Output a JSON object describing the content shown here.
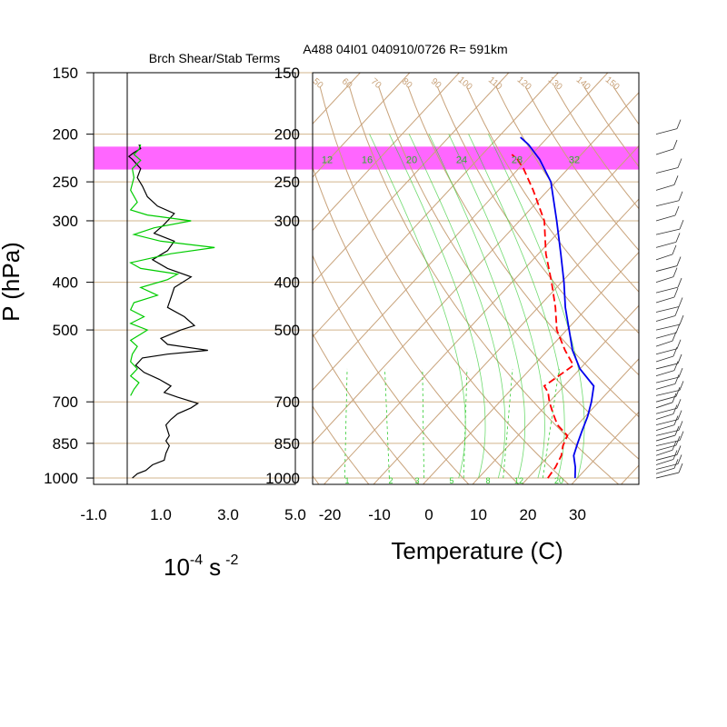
{
  "chart_data": [
    {
      "type": "line",
      "title": "Brch Shear/Stab Terms",
      "ylabel": "P (hPa)",
      "y_ticks": [
        150,
        200,
        250,
        300,
        400,
        500,
        700,
        850,
        1000
      ],
      "x_ticks": [
        "-1.0",
        "1.0",
        "3.0",
        "5.0"
      ],
      "unit_base": "10",
      "unit_exp": "-4",
      "unit_s": "s",
      "unit_s_exp": "-2",
      "ylim": [
        1000,
        150
      ],
      "xlim": [
        -1.0,
        5.0
      ],
      "zero_line": 0,
      "series": [
        {
          "color": "#000000",
          "points": [
            [
              0.15,
              1000
            ],
            [
              0.3,
              980
            ],
            [
              0.55,
              965
            ],
            [
              0.75,
              940
            ],
            [
              1.1,
              920
            ],
            [
              1.15,
              890
            ],
            [
              1.25,
              860
            ],
            [
              1.15,
              840
            ],
            [
              1.25,
              820
            ],
            [
              1.2,
              800
            ],
            [
              1.15,
              780
            ],
            [
              1.3,
              760
            ],
            [
              1.5,
              740
            ],
            [
              1.9,
              720
            ],
            [
              2.1,
              705
            ],
            [
              1.5,
              685
            ],
            [
              1.1,
              670
            ],
            [
              1.3,
              650
            ],
            [
              0.95,
              630
            ],
            [
              0.5,
              610
            ],
            [
              0.25,
              590
            ],
            [
              0.45,
              570
            ],
            [
              1.2,
              560
            ],
            [
              2.4,
              550
            ],
            [
              1.2,
              535
            ],
            [
              1.0,
              520
            ],
            [
              1.6,
              500
            ],
            [
              2.0,
              490
            ],
            [
              1.7,
              470
            ],
            [
              1.2,
              450
            ],
            [
              1.3,
              430
            ],
            [
              1.4,
              410
            ],
            [
              1.9,
              390
            ],
            [
              1.2,
              375
            ],
            [
              0.75,
              360
            ],
            [
              1.2,
              345
            ],
            [
              1.4,
              330
            ],
            [
              0.8,
              318
            ],
            [
              1.1,
              305
            ],
            [
              1.4,
              290
            ],
            [
              0.9,
              280
            ],
            [
              0.6,
              268
            ],
            [
              0.45,
              255
            ],
            [
              0.3,
              245
            ],
            [
              0.4,
              235
            ],
            [
              0.15,
              225
            ],
            [
              0.05,
              222
            ],
            [
              0.2,
              218
            ],
            [
              0.4,
              214
            ],
            [
              0.35,
              210
            ]
          ]
        },
        {
          "color": "#00cc00",
          "points": [
            [
              0.1,
              680
            ],
            [
              0.2,
              660
            ],
            [
              0.35,
              640
            ],
            [
              0.1,
              620
            ],
            [
              0.3,
              600
            ],
            [
              0.1,
              580
            ],
            [
              0.15,
              560
            ],
            [
              0.3,
              540
            ],
            [
              0.1,
              525
            ],
            [
              0.4,
              510
            ],
            [
              0.6,
              500
            ],
            [
              0.1,
              485
            ],
            [
              0.5,
              470
            ],
            [
              0.1,
              455
            ],
            [
              0.2,
              440
            ],
            [
              0.9,
              425
            ],
            [
              0.4,
              410
            ],
            [
              1.2,
              395
            ],
            [
              1.5,
              385
            ],
            [
              0.4,
              375
            ],
            [
              0.1,
              365
            ],
            [
              1.3,
              350
            ],
            [
              2.6,
              340
            ],
            [
              1.0,
              330
            ],
            [
              0.2,
              320
            ],
            [
              0.8,
              310
            ],
            [
              1.9,
              300
            ],
            [
              0.6,
              292
            ],
            [
              0.1,
              285
            ],
            [
              0.3,
              275
            ],
            [
              0.1,
              260
            ],
            [
              0.2,
              245
            ],
            [
              0.15,
              235
            ],
            [
              0.4,
              226
            ],
            [
              0.2,
              220
            ],
            [
              0.35,
              215
            ],
            [
              0.4,
              210
            ]
          ]
        }
      ]
    },
    {
      "type": "skew-t",
      "title": "A488 04I01 040910/0726 R= 591km",
      "xlabel": "Temperature (C)",
      "y_ticks": [
        150,
        200,
        250,
        300,
        400,
        500,
        700,
        850,
        1000
      ],
      "x_ticks": [
        "-20",
        "-10",
        "0",
        "10",
        "20",
        "30"
      ],
      "ylim": [
        1000,
        150
      ],
      "xlim_at_1000hPa": [
        -23.5,
        42
      ],
      "highlight_band_hPa": [
        212,
        236
      ],
      "highlight_color": "#ff66ff",
      "mixing_ratio_labels": [
        "1",
        "2",
        "3",
        "5",
        "8",
        "12",
        "20"
      ],
      "moist_adiabat_labels": [
        "12",
        "16",
        "20",
        "24",
        "28",
        "32"
      ],
      "dry_adiabat_labels": [
        "50",
        "60",
        "70",
        "80",
        "90",
        "100",
        "110",
        "120",
        "130",
        "140",
        "150"
      ],
      "series": [
        {
          "color": "#0000ee",
          "points": [
            [
              29.5,
              1000
            ],
            [
              27.5,
              950
            ],
            [
              25.0,
              900
            ],
            [
              23.5,
              850
            ],
            [
              22.0,
              800
            ],
            [
              20.5,
              750
            ],
            [
              18.5,
              700
            ],
            [
              16.0,
              650
            ],
            [
              10.0,
              600
            ],
            [
              5.0,
              550
            ],
            [
              0.5,
              500
            ],
            [
              -4.5,
              450
            ],
            [
              -9.5,
              400
            ],
            [
              -15.5,
              350
            ],
            [
              -22.5,
              300
            ],
            [
              -31.0,
              250
            ],
            [
              -37.5,
              225
            ],
            [
              -42.5,
              210
            ],
            [
              -45.5,
              203
            ]
          ]
        },
        {
          "color": "#ff0000",
          "dashed": true,
          "points": [
            [
              24.0,
              1000
            ],
            [
              23.5,
              950
            ],
            [
              22.5,
              900
            ],
            [
              21.0,
              860
            ],
            [
              20.0,
              820
            ],
            [
              16.0,
              780
            ],
            [
              13.0,
              740
            ],
            [
              10.0,
              700
            ],
            [
              8.0,
              670
            ],
            [
              6.0,
              650
            ],
            [
              7.0,
              620
            ],
            [
              8.0,
              590
            ],
            [
              3.5,
              550
            ],
            [
              -2.0,
              500
            ],
            [
              -6.5,
              450
            ],
            [
              -12.0,
              400
            ],
            [
              -18.5,
              350
            ],
            [
              -25.0,
              300
            ],
            [
              -33.0,
              260
            ],
            [
              -39.0,
              235
            ],
            [
              -42.0,
              225
            ],
            [
              -44.0,
              220
            ]
          ]
        }
      ]
    }
  ]
}
